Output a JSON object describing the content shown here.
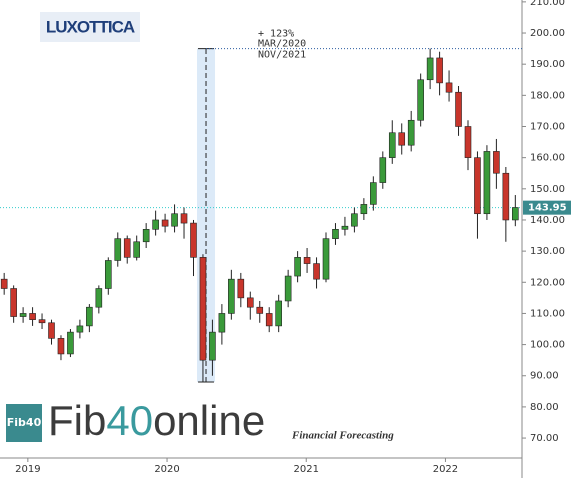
{
  "chart_data": {
    "type": "candlestick",
    "logos": {
      "brand": "LUXOTTICA",
      "badge": "Fib40",
      "name_a": "Fib",
      "name_b": "40",
      "name_c": "online",
      "tagline": "Financial Forecasting"
    },
    "annotation": {
      "gain": "+ 123%",
      "start": "MAR/2020",
      "end": "NOV/2021",
      "x": 2020.28,
      "from": 88,
      "to": 195
    },
    "last_price": 143.95,
    "up_color": "#3a9a3a",
    "down_color": "#c8352b",
    "x": [
      2018.83,
      2018.898,
      2018.966,
      2019.034,
      2019.102,
      2019.17,
      2019.238,
      2019.306,
      2019.374,
      2019.442,
      2019.51,
      2019.578,
      2019.646,
      2019.714,
      2019.782,
      2019.85,
      2019.918,
      2019.986,
      2020.054,
      2020.122,
      2020.19,
      2020.258,
      2020.326,
      2020.394,
      2020.462,
      2020.53,
      2020.598,
      2020.666,
      2020.734,
      2020.802,
      2020.87,
      2020.938,
      2021.006,
      2021.074,
      2021.142,
      2021.21,
      2021.278,
      2021.346,
      2021.414,
      2021.482,
      2021.55,
      2021.618,
      2021.686,
      2021.754,
      2021.822,
      2021.89,
      2021.958,
      2022.026,
      2022.094,
      2022.162,
      2022.23,
      2022.298,
      2022.366,
      2022.434,
      2022.502
    ],
    "open": [
      121,
      118,
      109,
      110,
      108,
      107,
      102,
      97,
      104,
      106,
      112,
      118,
      127,
      134,
      128,
      133,
      137,
      140,
      138,
      142,
      139,
      128,
      95,
      104,
      110,
      121,
      115,
      112,
      110,
      106,
      114,
      122,
      128,
      126,
      121,
      134,
      137,
      138,
      142,
      145,
      152,
      160,
      168,
      164,
      172,
      185,
      192,
      184,
      181,
      170,
      160,
      142,
      162,
      155,
      140
    ],
    "high": [
      123,
      119,
      112,
      112,
      110,
      108,
      103,
      105,
      108,
      113,
      119,
      128,
      136,
      135,
      135,
      139,
      143,
      142,
      145,
      144,
      140,
      129,
      108,
      113,
      124,
      123,
      117,
      114,
      112,
      116,
      124,
      130,
      131,
      128,
      136,
      139,
      141,
      144,
      147,
      154,
      162,
      172,
      171,
      175,
      187,
      195,
      194,
      188,
      183,
      172,
      162,
      164,
      166,
      157,
      148
    ],
    "low": [
      116,
      107,
      107,
      106,
      105,
      100,
      95,
      96,
      102,
      104,
      110,
      116,
      125,
      126,
      127,
      131,
      135,
      136,
      136,
      134,
      122,
      88,
      90,
      100,
      108,
      112,
      108,
      107,
      104,
      104,
      112,
      120,
      123,
      118,
      120,
      132,
      135,
      136,
      140,
      143,
      150,
      158,
      161,
      162,
      170,
      182,
      180,
      178,
      167,
      156,
      134,
      140,
      150,
      133,
      138
    ],
    "close": [
      118,
      109,
      110,
      108,
      107,
      102,
      97,
      104,
      106,
      112,
      118,
      127,
      134,
      128,
      133,
      137,
      140,
      138,
      142,
      139,
      128,
      95,
      104,
      110,
      121,
      115,
      112,
      110,
      106,
      114,
      122,
      128,
      126,
      121,
      134,
      137,
      138,
      142,
      145,
      152,
      160,
      168,
      164,
      172,
      185,
      192,
      184,
      181,
      170,
      160,
      142,
      162,
      155,
      140,
      144
    ],
    "xlim": [
      2018.8,
      2022.55
    ],
    "xticks": [
      2019,
      2020,
      2021,
      2022
    ],
    "ylim": [
      63.6,
      210.6
    ],
    "yticks": [
      {
        "value": 70,
        "label": "70.00"
      },
      {
        "value": 80,
        "label": "80.00"
      },
      {
        "value": 90,
        "label": "90.00"
      },
      {
        "value": 100,
        "label": "100.00"
      },
      {
        "value": 110,
        "label": "110.00"
      },
      {
        "value": 120,
        "label": "120.00"
      },
      {
        "value": 130,
        "label": "130.00"
      },
      {
        "value": 140,
        "label": "140.00"
      },
      {
        "value": 150,
        "label": "150.00"
      },
      {
        "value": 160,
        "label": "160.00"
      },
      {
        "value": 170,
        "label": "170.00"
      },
      {
        "value": 180,
        "label": "180.00"
      },
      {
        "value": 190,
        "label": "190.00"
      },
      {
        "value": 200,
        "label": "200.00"
      },
      {
        "value": 210,
        "label": "210.00"
      }
    ]
  }
}
